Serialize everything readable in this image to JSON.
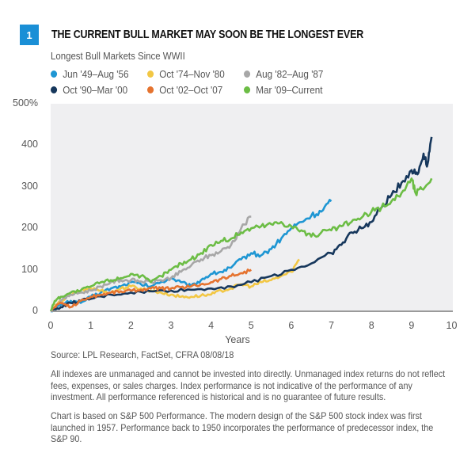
{
  "figure": {
    "number": "1",
    "title": "THE CURRENT BULL MARKET MAY SOON BE THE LONGEST EVER",
    "subtitle": "Longest Bull Markets Since WWII"
  },
  "chart_data": {
    "type": "line",
    "title": "THE CURRENT BULL MARKET MAY SOON BE THE LONGEST EVER",
    "subtitle": "Longest Bull Markets Since WWII",
    "xlabel": "Years",
    "ylabel": "",
    "xlim": [
      0,
      10
    ],
    "ylim": [
      0,
      500
    ],
    "x_ticks": [
      "0",
      "1",
      "2",
      "3",
      "4",
      "5",
      "6",
      "7",
      "8",
      "9",
      "10"
    ],
    "y_ticks": [
      "0",
      "100",
      "200",
      "300",
      "400",
      "500%"
    ],
    "y_tick_values": [
      0,
      100,
      200,
      300,
      400,
      500
    ],
    "grid": false,
    "legend_position": "top-left",
    "series": [
      {
        "name": "Jun '49–Aug '56",
        "color": "#1e96d3",
        "x": [
          0,
          0.25,
          0.5,
          0.75,
          1,
          1.25,
          1.5,
          1.75,
          2,
          2.25,
          2.5,
          2.75,
          3,
          3.25,
          3.5,
          3.75,
          4,
          4.25,
          4.5,
          4.75,
          5,
          5.25,
          5.5,
          5.75,
          6,
          6.25,
          6.5,
          6.75,
          7
        ],
        "y": [
          0,
          15,
          25,
          20,
          35,
          45,
          55,
          60,
          70,
          65,
          60,
          70,
          80,
          70,
          60,
          75,
          90,
          95,
          105,
          125,
          140,
          135,
          150,
          175,
          200,
          215,
          230,
          240,
          265
        ]
      },
      {
        "name": "Oct '74–Nov '80",
        "color": "#f2c744",
        "x": [
          0,
          0.25,
          0.5,
          0.75,
          1,
          1.25,
          1.5,
          1.75,
          2,
          2.25,
          2.5,
          2.75,
          3,
          3.25,
          3.5,
          3.75,
          4,
          4.25,
          4.5,
          4.75,
          5,
          5.25,
          5.5,
          5.75,
          6,
          6.2
        ],
        "y": [
          0,
          25,
          40,
          50,
          55,
          50,
          45,
          55,
          60,
          55,
          50,
          45,
          40,
          35,
          35,
          38,
          40,
          50,
          55,
          65,
          60,
          70,
          75,
          85,
          95,
          125
        ]
      },
      {
        "name": "Aug '82–Aug '87",
        "color": "#a7a7a7",
        "x": [
          0,
          0.25,
          0.5,
          0.75,
          1,
          1.25,
          1.5,
          1.75,
          2,
          2.25,
          2.5,
          2.75,
          3,
          3.25,
          3.5,
          3.75,
          4,
          4.25,
          4.5,
          4.75,
          5
        ],
        "y": [
          0,
          25,
          40,
          45,
          50,
          60,
          70,
          75,
          75,
          72,
          70,
          75,
          80,
          95,
          110,
          125,
          135,
          145,
          160,
          200,
          228
        ]
      },
      {
        "name": "Oct '90–Mar '00",
        "color": "#16375c",
        "x": [
          0,
          0.25,
          0.5,
          0.75,
          1,
          1.5,
          2,
          2.5,
          3,
          3.5,
          4,
          4.5,
          5,
          5.5,
          6,
          6.5,
          7,
          7.25,
          7.5,
          7.75,
          8,
          8.25,
          8.5,
          8.75,
          9,
          9.15,
          9.3,
          9.4,
          9.5
        ],
        "y": [
          0,
          10,
          20,
          25,
          30,
          40,
          45,
          48,
          50,
          52,
          55,
          60,
          70,
          85,
          100,
          115,
          140,
          160,
          190,
          200,
          215,
          250,
          280,
          310,
          340,
          330,
          380,
          355,
          420
        ]
      },
      {
        "name": "Oct '02–Oct '07",
        "color": "#e5732f",
        "x": [
          0,
          0.15,
          0.3,
          0.5,
          0.75,
          1,
          1.25,
          1.5,
          1.75,
          2,
          2.25,
          2.5,
          2.75,
          3,
          3.25,
          3.5,
          3.75,
          4,
          4.25,
          4.5,
          4.75,
          5
        ],
        "y": [
          0,
          15,
          20,
          10,
          25,
          35,
          40,
          45,
          48,
          50,
          52,
          55,
          55,
          55,
          58,
          60,
          65,
          70,
          78,
          85,
          92,
          100
        ]
      },
      {
        "name": "Mar '09–Current",
        "color": "#6cbd45",
        "x": [
          0,
          0.1,
          0.25,
          0.5,
          0.75,
          1,
          1.25,
          1.5,
          1.75,
          2,
          2.25,
          2.5,
          2.75,
          3,
          3.25,
          3.5,
          3.75,
          4,
          4.25,
          4.5,
          4.75,
          5,
          5.25,
          5.5,
          5.75,
          6,
          6.25,
          6.5,
          6.75,
          7,
          7.25,
          7.5,
          7.75,
          8,
          8.25,
          8.5,
          8.75,
          9,
          9.1,
          9.25,
          9.5
        ],
        "y": [
          0,
          25,
          35,
          45,
          50,
          60,
          70,
          75,
          80,
          90,
          85,
          70,
          85,
          100,
          115,
          125,
          140,
          160,
          170,
          175,
          190,
          200,
          205,
          210,
          215,
          205,
          195,
          180,
          190,
          195,
          205,
          215,
          225,
          240,
          250,
          265,
          285,
          320,
          285,
          295,
          320
        ]
      }
    ]
  },
  "legend": [
    {
      "label": "Jun '49–Aug '56",
      "color": "#1e96d3"
    },
    {
      "label": "Oct '74–Nov '80",
      "color": "#f2c744"
    },
    {
      "label": "Aug '82–Aug '87",
      "color": "#a7a7a7"
    },
    {
      "label": "Oct '90–Mar '00",
      "color": "#16375c"
    },
    {
      "label": "Oct '02–Oct '07",
      "color": "#e5732f"
    },
    {
      "label": "Mar '09–Current",
      "color": "#6cbd45"
    }
  ],
  "notes": {
    "source": "Source: LPL Research, FactSet, CFRA   08/08/18",
    "disclaimer": "All indexes are unmanaged and cannot be invested into directly. Unmanaged index returns do not reflect fees, expenses, or sales charges. Index performance is not indicative of the performance of any investment. All performance referenced is historical and is no guarantee of future results.",
    "methodology": "Chart is based on S&P 500 Performance. The modern design of the S&P 500 stock index was first launched in 1957. Performance back to 1950 incorporates the performance of predecessor index, the S&P 90."
  },
  "colors": {
    "badge": "#1a8fd6",
    "plot_background": "#efeff1",
    "axis": "#9a9a9a"
  }
}
